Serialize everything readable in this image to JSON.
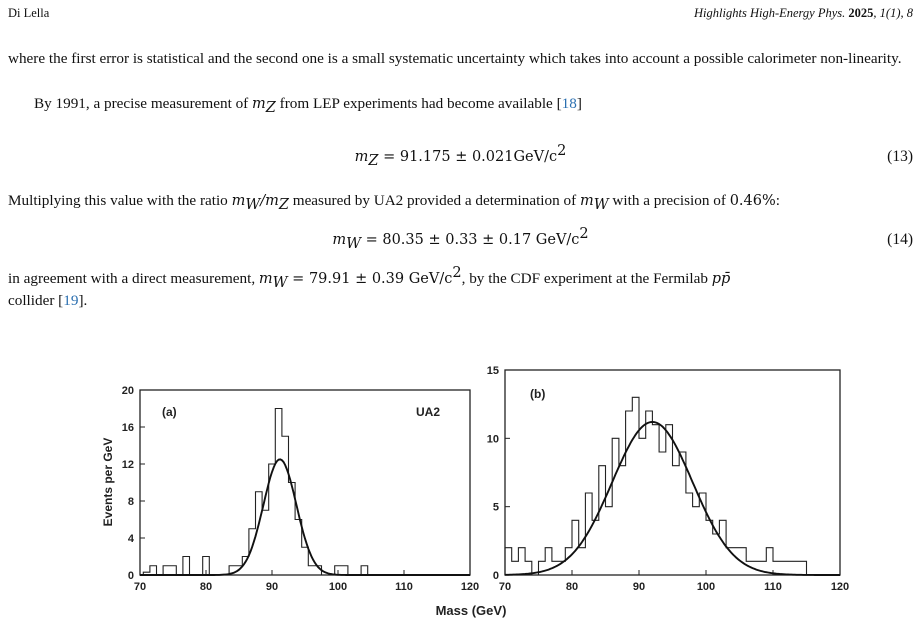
{
  "header": {
    "author": "Di Lella",
    "journal_italic": "Highlights High-Energy Phys.",
    "journal_year": "2025",
    "journal_rest": ", 1(1), 8"
  },
  "para1": {
    "text": "where the first error is statistical and the second one is a small systematic uncertainty which takes into account a possible calorimeter non-linearity."
  },
  "para2": {
    "pre": "By 1991, a precise measurement of ",
    "var": "m",
    "var_sub": "Z",
    "mid": " from LEP experiments had become available [",
    "ref": "18",
    "post": "]"
  },
  "eq13": {
    "lhs": "m",
    "lhs_sub": "Z",
    "rhs": " = 91.175 ± 0.021GeV/c",
    "sup": "2",
    "num": "(13)"
  },
  "para3": {
    "pre": "Multiplying this value with the ratio ",
    "ratio": "m",
    "ratio_sub1": "W",
    "ratio_mid": "/m",
    "ratio_sub2": "Z",
    "mid": " measured by UA2 provided a determination of ",
    "var": "m",
    "var_sub": "W",
    "post": " with a precision of ",
    "precision": "0.46%",
    "end": ":"
  },
  "eq14": {
    "lhs": "m",
    "lhs_sub": "W",
    "rhs": " = 80.35 ± 0.33 ± 0.17 GeV/c",
    "sup": "2",
    "num": "(14)"
  },
  "para4": {
    "pre": "in agreement with a direct measurement, ",
    "var": "m",
    "var_sub": "W",
    "val": " = 79.91 ± 0.39 GeV/c",
    "sup": "2",
    "mid": ", by the CDF experiment at the Fermilab ",
    "ppbar": "pp̄",
    "line2": "collider [",
    "ref": "19",
    "post": "]."
  },
  "figure": {
    "xlabel": "Mass (GeV)",
    "ylabel": "Events per GeV",
    "panels": [
      {
        "label": "(a)",
        "tag": "UA2",
        "xlim": [
          70,
          120
        ],
        "ylim": [
          0,
          20
        ],
        "xticks": [
          "70",
          "80",
          "90",
          "100",
          "110",
          "120"
        ],
        "yticks": [
          "0",
          "4",
          "8",
          "12",
          "16",
          "20"
        ],
        "ytick_values": [
          0,
          4,
          8,
          12,
          16,
          20
        ]
      },
      {
        "label": "(b)",
        "tag": "",
        "xlim": [
          70,
          120
        ],
        "ylim": [
          0,
          15
        ],
        "xticks": [
          "70",
          "80",
          "90",
          "100",
          "110",
          "120"
        ],
        "yticks": [
          "0",
          "5",
          "10",
          "15"
        ],
        "ytick_values": [
          0,
          5,
          10,
          15
        ]
      }
    ]
  },
  "chart_data": [
    {
      "type": "bar",
      "title": "(a) UA2",
      "xlabel": "Mass (GeV)",
      "ylabel": "Events per GeV",
      "xlim": [
        70,
        120
      ],
      "ylim": [
        0,
        20
      ],
      "bin_width": 1,
      "bins": [
        {
          "x": 71,
          "y": 0.3
        },
        {
          "x": 72,
          "y": 1
        },
        {
          "x": 73,
          "y": 0
        },
        {
          "x": 74,
          "y": 1
        },
        {
          "x": 75,
          "y": 1
        },
        {
          "x": 76,
          "y": 0
        },
        {
          "x": 77,
          "y": 2
        },
        {
          "x": 78,
          "y": 0
        },
        {
          "x": 79,
          "y": 0
        },
        {
          "x": 80,
          "y": 2
        },
        {
          "x": 81,
          "y": 0
        },
        {
          "x": 82,
          "y": 0
        },
        {
          "x": 83,
          "y": 0
        },
        {
          "x": 84,
          "y": 1
        },
        {
          "x": 85,
          "y": 1
        },
        {
          "x": 86,
          "y": 2
        },
        {
          "x": 87,
          "y": 5
        },
        {
          "x": 88,
          "y": 9
        },
        {
          "x": 89,
          "y": 7
        },
        {
          "x": 90,
          "y": 12
        },
        {
          "x": 91,
          "y": 18
        },
        {
          "x": 92,
          "y": 15
        },
        {
          "x": 93,
          "y": 10
        },
        {
          "x": 94,
          "y": 6
        },
        {
          "x": 95,
          "y": 3
        },
        {
          "x": 96,
          "y": 1
        },
        {
          "x": 97,
          "y": 1
        },
        {
          "x": 98,
          "y": 0
        },
        {
          "x": 99,
          "y": 0
        },
        {
          "x": 100,
          "y": 1
        },
        {
          "x": 101,
          "y": 1
        },
        {
          "x": 102,
          "y": 0
        },
        {
          "x": 103,
          "y": 0
        },
        {
          "x": 104,
          "y": 1
        },
        {
          "x": 105,
          "y": 0
        }
      ],
      "fit": {
        "peak": 12.5,
        "mean": 91.2,
        "sigma": 2.5
      }
    },
    {
      "type": "bar",
      "title": "(b)",
      "xlabel": "Mass (GeV)",
      "ylabel": "Events per GeV",
      "xlim": [
        70,
        120
      ],
      "ylim": [
        0,
        15
      ],
      "bin_width": 1,
      "bins": [
        {
          "x": 70.5,
          "y": 2
        },
        {
          "x": 71.5,
          "y": 1
        },
        {
          "x": 72.5,
          "y": 2
        },
        {
          "x": 73.5,
          "y": 1
        },
        {
          "x": 74.5,
          "y": 0
        },
        {
          "x": 75.5,
          "y": 1
        },
        {
          "x": 76.5,
          "y": 2
        },
        {
          "x": 77.5,
          "y": 1
        },
        {
          "x": 78.5,
          "y": 1
        },
        {
          "x": 79.5,
          "y": 2
        },
        {
          "x": 80.5,
          "y": 4
        },
        {
          "x": 81.5,
          "y": 2
        },
        {
          "x": 82.5,
          "y": 6
        },
        {
          "x": 83.5,
          "y": 4
        },
        {
          "x": 84.5,
          "y": 8
        },
        {
          "x": 85.5,
          "y": 5
        },
        {
          "x": 86.5,
          "y": 10
        },
        {
          "x": 87.5,
          "y": 8
        },
        {
          "x": 88.5,
          "y": 12
        },
        {
          "x": 89.5,
          "y": 13
        },
        {
          "x": 90.5,
          "y": 10
        },
        {
          "x": 91.5,
          "y": 12
        },
        {
          "x": 92.5,
          "y": 11
        },
        {
          "x": 93.5,
          "y": 9
        },
        {
          "x": 94.5,
          "y": 11
        },
        {
          "x": 95.5,
          "y": 8
        },
        {
          "x": 96.5,
          "y": 9
        },
        {
          "x": 97.5,
          "y": 6
        },
        {
          "x": 98.5,
          "y": 5
        },
        {
          "x": 99.5,
          "y": 6
        },
        {
          "x": 100.5,
          "y": 4
        },
        {
          "x": 101.5,
          "y": 3
        },
        {
          "x": 102.5,
          "y": 4
        },
        {
          "x": 103.5,
          "y": 2
        },
        {
          "x": 104.5,
          "y": 2
        },
        {
          "x": 105.5,
          "y": 2
        },
        {
          "x": 106.5,
          "y": 1
        },
        {
          "x": 107.5,
          "y": 1
        },
        {
          "x": 108.5,
          "y": 1
        },
        {
          "x": 109.5,
          "y": 2
        },
        {
          "x": 110.5,
          "y": 1
        },
        {
          "x": 111.5,
          "y": 1
        },
        {
          "x": 112.5,
          "y": 1
        },
        {
          "x": 113.5,
          "y": 1
        },
        {
          "x": 114.5,
          "y": 1
        },
        {
          "x": 115.5,
          "y": 0
        }
      ],
      "fit": {
        "peak": 11.2,
        "mean": 92,
        "sigma": 6
      }
    }
  ]
}
